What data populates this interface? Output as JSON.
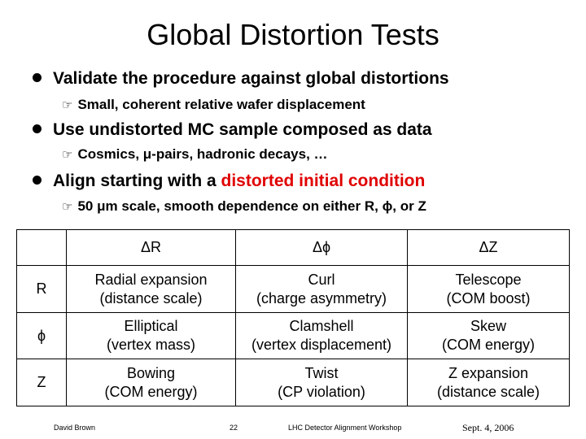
{
  "slide": {
    "title": "Global Distortion Tests",
    "bullets": [
      {
        "text": "Validate the procedure against global distortions",
        "sub": "Small, coherent relative wafer displacement"
      },
      {
        "text": "Use undistorted MC sample composed as data",
        "sub": "Cosmics, μ-pairs, hadronic decays, …"
      },
      {
        "text_pre": "Align starting with a ",
        "text_red": "distorted initial condition",
        "sub": "50 μm scale, smooth dependence on either R, ϕ, or Z"
      }
    ],
    "icons": {
      "bullet": "filled-circle",
      "sub_bullet": "pointing-hand-icon"
    },
    "colors": {
      "highlight": "#e00000"
    }
  },
  "table": {
    "columns": [
      "",
      "ΔR",
      "Δϕ",
      "ΔZ"
    ],
    "rows": [
      {
        "label": "R",
        "cells": [
          [
            "Radial expansion",
            "(distance scale)"
          ],
          [
            "Curl",
            "(charge asymmetry)"
          ],
          [
            "Telescope",
            "(COM boost)"
          ]
        ]
      },
      {
        "label": "ϕ",
        "cells": [
          [
            "Elliptical",
            "(vertex mass)"
          ],
          [
            "Clamshell",
            "(vertex displacement)"
          ],
          [
            "Skew",
            "(COM energy)"
          ]
        ]
      },
      {
        "label": "Z",
        "cells": [
          [
            "Bowing",
            "(COM energy)"
          ],
          [
            "Twist",
            "(CP violation)"
          ],
          [
            "Z expansion",
            "(distance scale)"
          ]
        ]
      }
    ]
  },
  "footer": {
    "author": "David Brown",
    "page": "22",
    "event": "LHC Detector Alignment Workshop",
    "date": "Sept. 4, 2006"
  }
}
